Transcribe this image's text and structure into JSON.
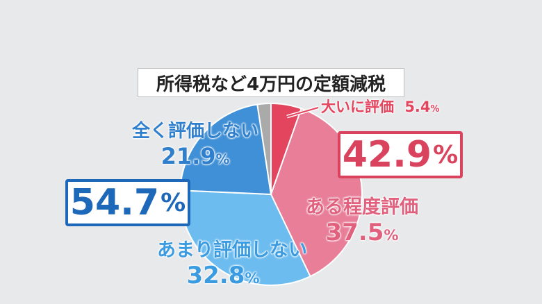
{
  "title": "所得税など4万円の定額減税",
  "summary": {
    "positive": {
      "value": "42.9",
      "unit": "%",
      "color": "#d9435d"
    },
    "negative": {
      "value": "54.7",
      "unit": "%",
      "color": "#1d68b8"
    }
  },
  "chart_data": {
    "type": "pie",
    "start": "top, clockwise",
    "slices": [
      {
        "label": "大いに評価",
        "value": 5.4,
        "value_text": "5.4",
        "unit": "%",
        "color": "#e3455f"
      },
      {
        "label": "ある程度評価",
        "value": 37.5,
        "value_text": "37.5",
        "unit": "%",
        "color": "#e87e98"
      },
      {
        "label": "あまり評価しない",
        "value": 32.8,
        "value_text": "32.8",
        "unit": "%",
        "color": "#6cbcf0"
      },
      {
        "label": "全く評価しない",
        "value": 21.9,
        "value_text": "21.9",
        "unit": "%",
        "color": "#3f90d6"
      },
      {
        "label": "",
        "value": 2.4,
        "value_text": "",
        "unit": "",
        "color": "#aaaaaa"
      }
    ]
  }
}
